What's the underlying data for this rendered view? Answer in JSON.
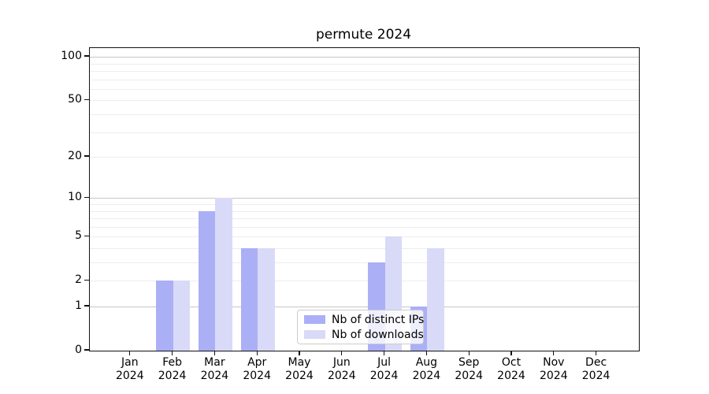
{
  "chart_data": {
    "type": "bar",
    "title": "permute 2024",
    "categories": [
      "Jan 2024",
      "Feb 2024",
      "Mar 2024",
      "Apr 2024",
      "May 2024",
      "Jun 2024",
      "Jul 2024",
      "Aug 2024",
      "Sep 2024",
      "Oct 2024",
      "Nov 2024",
      "Dec 2024"
    ],
    "series": [
      {
        "name": "Nb of distinct IPs",
        "color": "#abaff6",
        "values": [
          0,
          2,
          8,
          4,
          0,
          0,
          3,
          1,
          0,
          0,
          0,
          0
        ]
      },
      {
        "name": "Nb of downloads",
        "color": "#d9daf7",
        "values": [
          0,
          2,
          10,
          4,
          0,
          0,
          5,
          4,
          0,
          0,
          0,
          0
        ]
      }
    ],
    "yscale": "log1p",
    "ytick_values": [
      0,
      1,
      2,
      5,
      10,
      20,
      50,
      100
    ],
    "ytick_labels": [
      "0",
      "1",
      "2",
      "5",
      "10",
      "20",
      "50",
      "100"
    ],
    "minor_gridline_values": [
      2,
      3,
      4,
      5,
      6,
      7,
      8,
      9,
      20,
      30,
      40,
      50,
      60,
      70,
      80,
      90
    ],
    "major_gridline_values": [
      1,
      10,
      100
    ],
    "ylim": [
      0,
      115
    ],
    "grid": true,
    "legend_position": "lower center",
    "colors": {
      "major_grid": "#c6c6c6",
      "minor_grid": "#ededed",
      "spine": "#111111",
      "background": "#ffffff"
    }
  }
}
